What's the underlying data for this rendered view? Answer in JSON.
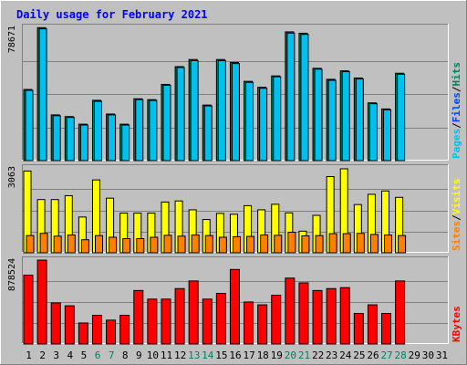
{
  "chart_data": {
    "type": "bar",
    "title": "Daily usage for February 2021",
    "categories": [
      "1",
      "2",
      "3",
      "4",
      "5",
      "6",
      "7",
      "8",
      "9",
      "10",
      "11",
      "12",
      "13",
      "14",
      "15",
      "16",
      "17",
      "18",
      "19",
      "20",
      "21",
      "22",
      "23",
      "24",
      "25",
      "26",
      "27",
      "28",
      "29",
      "30",
      "31"
    ],
    "weekend_days": [
      "6",
      "7",
      "13",
      "14",
      "20",
      "21",
      "27",
      "28"
    ],
    "panels": [
      {
        "id": "hits-files",
        "ymax_label": "78671",
        "ymax": 78671,
        "right_labels": [
          {
            "text": "Pages",
            "color": "#00c0f0"
          },
          {
            "text": "/",
            "color": "#000000"
          },
          {
            "text": "Files",
            "color": "#0040ff"
          },
          {
            "text": "/",
            "color": "#000000"
          },
          {
            "text": "Hits",
            "color": "#00805c"
          }
        ],
        "series": [
          {
            "name": "Hits",
            "color": "#00805c",
            "values": [
              42000,
              78500,
              27000,
              26000,
              21500,
              35600,
              27500,
              21500,
              36500,
              36000,
              45000,
              55500,
              59700,
              32800,
              59700,
              58000,
              46800,
              43300,
              50000,
              76000,
              75200,
              54500,
              48000,
              53000,
              48800,
              34100,
              30500,
              51600,
              0,
              0,
              0
            ]
          },
          {
            "name": "Files",
            "color": "#0040ff",
            "values": [
              41500,
              77800,
              26500,
              25500,
              21000,
              35000,
              27000,
              21000,
              36000,
              35500,
              44500,
              55000,
              59000,
              32300,
              59000,
              57300,
              46200,
              42700,
              49500,
              75300,
              74500,
              54000,
              47400,
              52500,
              48200,
              33600,
              30000,
              51000,
              0,
              0,
              0
            ]
          },
          {
            "name": "Pages",
            "color": "#00c0f0",
            "values": [
              0,
              0,
              0,
              0,
              0,
              0,
              0,
              0,
              0,
              0,
              0,
              0,
              0,
              0,
              0,
              0,
              0,
              0,
              0,
              0,
              0,
              0,
              0,
              0,
              0,
              0,
              0,
              0,
              0,
              0,
              0
            ]
          }
        ]
      },
      {
        "id": "visits-sites",
        "ymax_label": "3063",
        "ymax": 3063,
        "right_labels": [
          {
            "text": "Sites",
            "color": "#ff8000"
          },
          {
            "text": "/",
            "color": "#000000"
          },
          {
            "text": "Visits",
            "color": "#ffff00"
          }
        ],
        "series": [
          {
            "name": "Visits",
            "color": "#ffff00",
            "values": [
              2950,
              1920,
              1920,
              2060,
              1290,
              2630,
              1970,
              1430,
              1430,
              1430,
              1830,
              1870,
              1550,
              1200,
              1420,
              1390,
              1700,
              1550,
              1750,
              1440,
              780,
              1350,
              2750,
              3030,
              1740,
              2110,
              2230,
              2000,
              0,
              0,
              0
            ]
          },
          {
            "name": "Sites",
            "color": "#ff8000",
            "values": [
              620,
              700,
              600,
              640,
              470,
              620,
              560,
              510,
              510,
              560,
              630,
              600,
              640,
              620,
              560,
              580,
              590,
              640,
              630,
              740,
              610,
              620,
              690,
              690,
              700,
              660,
              640,
              620,
              0,
              0,
              0
            ]
          }
        ]
      },
      {
        "id": "kbytes",
        "ymax_label": "878524",
        "ymax": 878524,
        "right_labels": [
          {
            "text": "KBytes",
            "color": "#ff0000"
          }
        ],
        "series": [
          {
            "name": "KBytes",
            "color": "#ff0000",
            "values": [
              720000,
              878000,
              430000,
              400000,
              220000,
              300000,
              250000,
              300000,
              560000,
              470000,
              470000,
              580000,
              660000,
              470000,
              530000,
              780000,
              440000,
              410000,
              510000,
              690000,
              640000,
              560000,
              580000,
              590000,
              320000,
              410000,
              320000,
              660000,
              0,
              0,
              0
            ]
          }
        ]
      }
    ]
  }
}
